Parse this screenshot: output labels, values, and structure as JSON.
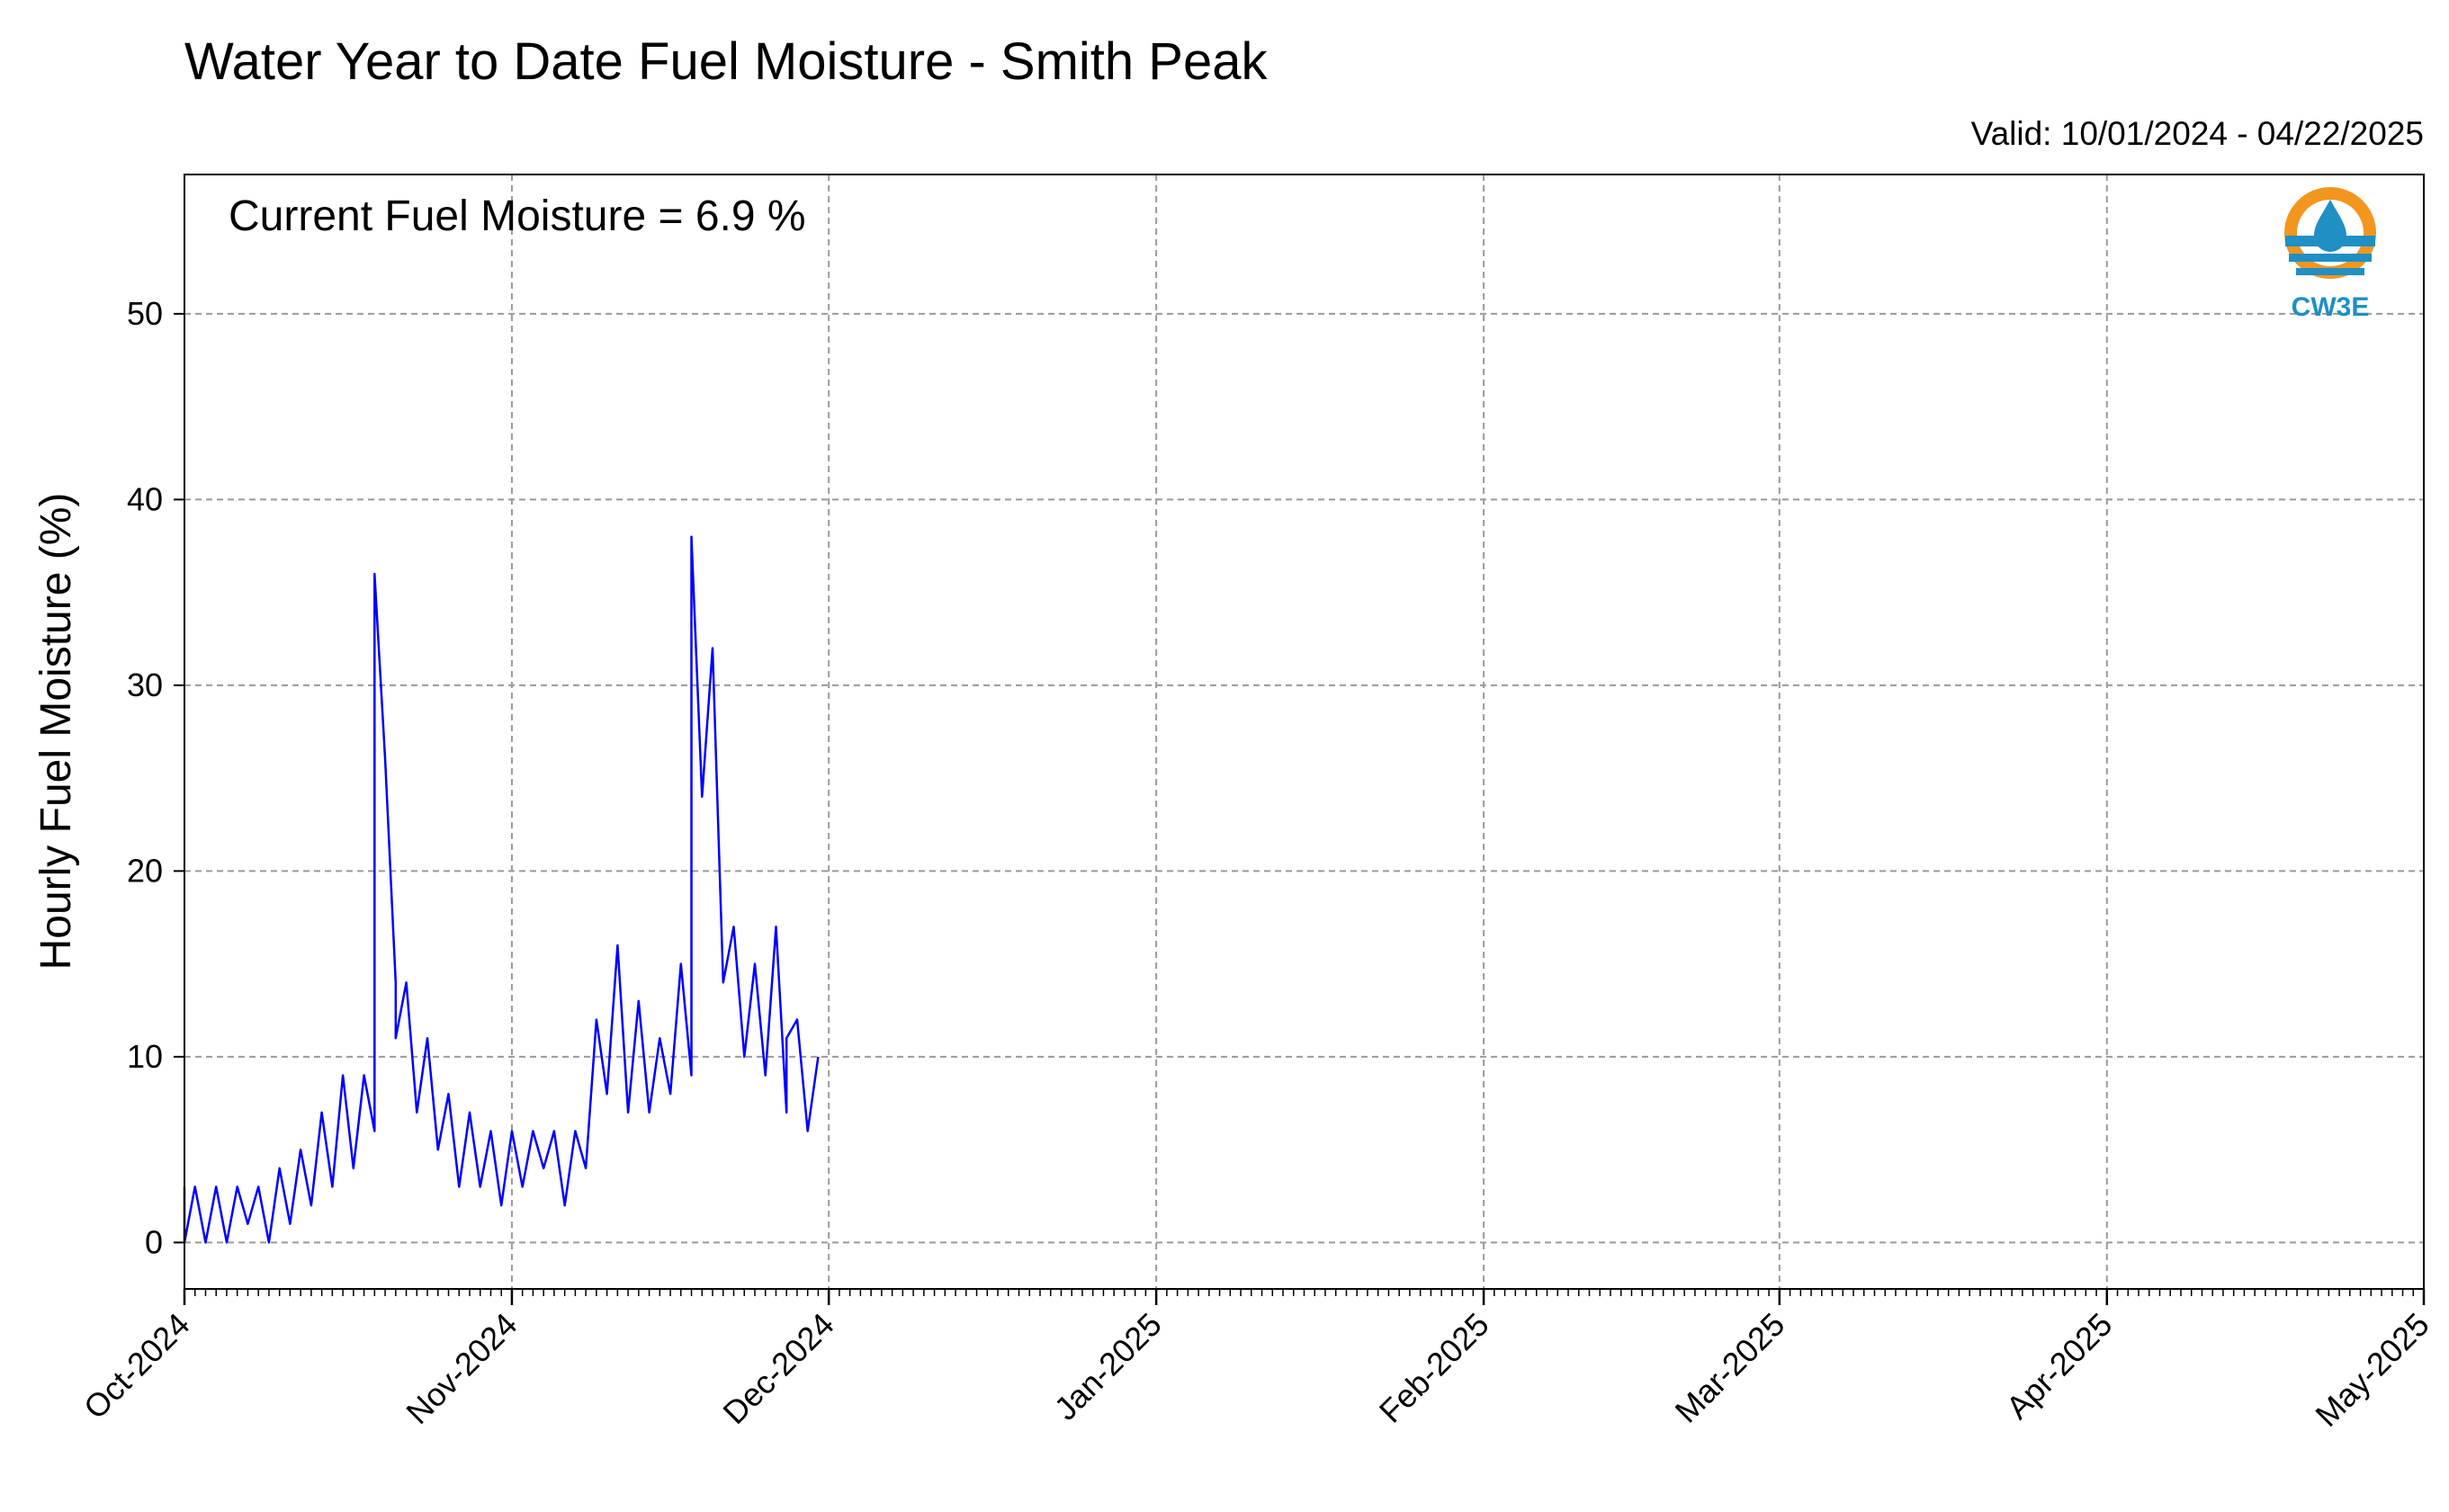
{
  "title": "Water Year to Date Fuel Moisture - Smith Peak",
  "valid_text": "Valid: 10/01/2024 - 04/22/2025",
  "annotation": "Current Fuel Moisture = 6.9 %",
  "logo": {
    "text": "CW3E",
    "icon": "cw3e-logo-icon",
    "colors": {
      "orange": "#f2961f",
      "blue": "#1f8fc4"
    }
  },
  "chart_data": {
    "type": "line",
    "title": "Water Year to Date Fuel Moisture - Smith Peak",
    "xlabel": "",
    "ylabel": "Hourly Fuel Moisture (%)",
    "xlim": [
      "2024-10-01",
      "2025-05-01"
    ],
    "ylim": [
      -2.5,
      57.5
    ],
    "yticks": [
      0,
      10,
      20,
      30,
      40,
      50
    ],
    "xtick_labels": [
      "Oct-2024",
      "Nov-2024",
      "Dec-2024",
      "Jan-2025",
      "Feb-2025",
      "Mar-2025",
      "Apr-2025",
      "May-2025"
    ],
    "xtick_dates": [
      "2024-10-01",
      "2024-11-01",
      "2024-12-01",
      "2025-01-01",
      "2025-02-01",
      "2025-03-01",
      "2025-04-01",
      "2025-05-01"
    ],
    "grid": true,
    "line_color": "#0000ff",
    "series": [
      {
        "values": [
          [
            "2024-10-01",
            3
          ],
          [
            "2024-10-01",
            0
          ],
          [
            "2024-10-02",
            3
          ],
          [
            "2024-10-03",
            0
          ],
          [
            "2024-10-04",
            3
          ],
          [
            "2024-10-05",
            0
          ],
          [
            "2024-10-06",
            3
          ],
          [
            "2024-10-07",
            1
          ],
          [
            "2024-10-08",
            3
          ],
          [
            "2024-10-09",
            0
          ],
          [
            "2024-10-10",
            4
          ],
          [
            "2024-10-11",
            1
          ],
          [
            "2024-10-12",
            5
          ],
          [
            "2024-10-13",
            2
          ],
          [
            "2024-10-14",
            7
          ],
          [
            "2024-10-15",
            3
          ],
          [
            "2024-10-16",
            9
          ],
          [
            "2024-10-17",
            4
          ],
          [
            "2024-10-18",
            9
          ],
          [
            "2024-10-19",
            6
          ],
          [
            "2024-10-19",
            36
          ],
          [
            "2024-10-20",
            26
          ],
          [
            "2024-10-21",
            14
          ],
          [
            "2024-10-21",
            11
          ],
          [
            "2024-10-22",
            14
          ],
          [
            "2024-10-23",
            7
          ],
          [
            "2024-10-24",
            11
          ],
          [
            "2024-10-25",
            5
          ],
          [
            "2024-10-26",
            8
          ],
          [
            "2024-10-27",
            3
          ],
          [
            "2024-10-28",
            7
          ],
          [
            "2024-10-29",
            3
          ],
          [
            "2024-10-30",
            6
          ],
          [
            "2024-10-31",
            2
          ],
          [
            "2024-11-01",
            6
          ],
          [
            "2024-11-02",
            3
          ],
          [
            "2024-11-03",
            6
          ],
          [
            "2024-11-04",
            4
          ],
          [
            "2024-11-05",
            6
          ],
          [
            "2024-11-06",
            2
          ],
          [
            "2024-11-07",
            6
          ],
          [
            "2024-11-08",
            4
          ],
          [
            "2024-11-09",
            12
          ],
          [
            "2024-11-10",
            8
          ],
          [
            "2024-11-11",
            16
          ],
          [
            "2024-11-12",
            7
          ],
          [
            "2024-11-13",
            13
          ],
          [
            "2024-11-14",
            7
          ],
          [
            "2024-11-15",
            11
          ],
          [
            "2024-11-16",
            8
          ],
          [
            "2024-11-17",
            15
          ],
          [
            "2024-11-18",
            9
          ],
          [
            "2024-11-18",
            38
          ],
          [
            "2024-11-19",
            24
          ],
          [
            "2024-11-20",
            32
          ],
          [
            "2024-11-21",
            14
          ],
          [
            "2024-11-22",
            17
          ],
          [
            "2024-11-23",
            10
          ],
          [
            "2024-11-24",
            15
          ],
          [
            "2024-11-25",
            9
          ],
          [
            "2024-11-26",
            17
          ],
          [
            "2024-11-27",
            7
          ],
          [
            "2024-11-27",
            11
          ],
          [
            "2024-11-28",
            12
          ],
          [
            "2024-11-29",
            6
          ],
          [
            "2024-11-30",
            10
          ]
        ]
      }
    ]
  }
}
